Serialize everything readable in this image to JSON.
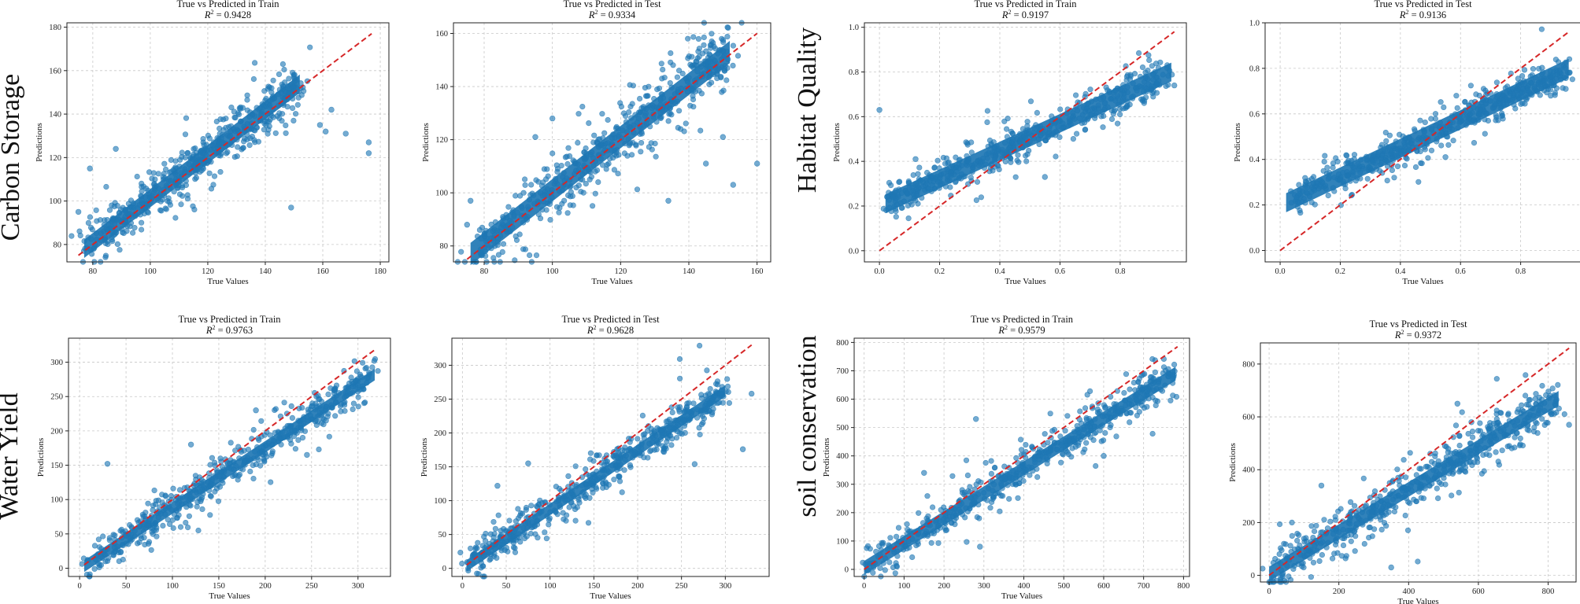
{
  "figure": {
    "row_labels": [
      "Carbon Storage",
      "Habitat Quality",
      "Water Yield",
      "soil conservation"
    ],
    "colors": {
      "points": "#1f77b4",
      "reference_line": "#d62728"
    }
  },
  "chart_data": [
    {
      "id": "cs-train",
      "type": "scatter",
      "title": "True vs Predicted in Train",
      "r2_text": "= 0.9428",
      "xlabel": "True Values",
      "ylabel": "Predictions",
      "xlim": [
        71,
        183
      ],
      "ylim": [
        72,
        182
      ],
      "xticks": [
        80,
        100,
        120,
        140,
        160,
        180
      ],
      "yticks": [
        80,
        100,
        120,
        140,
        160,
        180
      ],
      "ref_line": [
        75,
        177
      ],
      "band": [
        [
          77,
          78
        ],
        [
          152,
          154
        ]
      ],
      "band_width": 12,
      "scatter_sd": 3.5,
      "outliers": [
        [
          163,
          142
        ],
        [
          176,
          127
        ],
        [
          176,
          122
        ],
        [
          161,
          132
        ],
        [
          159,
          135
        ],
        [
          149,
          97
        ],
        [
          88,
          124
        ],
        [
          75,
          95
        ],
        [
          79,
          115
        ],
        [
          168,
          131
        ]
      ]
    },
    {
      "id": "cs-test",
      "type": "scatter",
      "title": "True vs Predicted in Test",
      "r2_text": "= 0.9334",
      "xlabel": "True Values",
      "ylabel": "Predictions",
      "xlim": [
        71,
        164
      ],
      "ylim": [
        74,
        164
      ],
      "xticks": [
        80,
        100,
        120,
        140,
        160
      ],
      "yticks": [
        80,
        100,
        120,
        140,
        160
      ],
      "ref_line": [
        75,
        160
      ],
      "band": [
        [
          76,
          77
        ],
        [
          152,
          153
        ]
      ],
      "band_width": 12,
      "scatter_sd": 3.5,
      "outliers": [
        [
          160,
          111
        ],
        [
          150,
          121
        ],
        [
          153,
          103
        ],
        [
          76,
          97
        ],
        [
          75,
          88
        ],
        [
          95,
          121
        ],
        [
          100,
          128
        ],
        [
          134,
          97
        ],
        [
          145,
          111
        ]
      ]
    },
    {
      "id": "hq-train",
      "type": "scatter",
      "title": "True vs Predicted in Train",
      "r2_text": "= 0.9197",
      "xlabel": "True Values",
      "ylabel": "Predictions",
      "xlim": [
        -0.05,
        1.02
      ],
      "ylim": [
        -0.05,
        1.02
      ],
      "xticks": [
        0.0,
        0.2,
        0.4,
        0.6,
        0.8
      ],
      "yticks": [
        0.0,
        0.2,
        0.4,
        0.6,
        0.8,
        1.0
      ],
      "ref_line": [
        0,
        0.98
      ],
      "band": [
        [
          0.02,
          0.21
        ],
        [
          0.97,
          0.8
        ]
      ],
      "band_width": 0.12,
      "scatter_sd": 0.025,
      "outliers": [
        [
          0.0,
          0.63
        ],
        [
          0.98,
          0.74
        ],
        [
          0.88,
          0.67
        ],
        [
          0.12,
          0.41
        ],
        [
          0.18,
          0.31
        ],
        [
          0.55,
          0.33
        ]
      ]
    },
    {
      "id": "hq-test",
      "type": "scatter",
      "title": "True vs Predicted in Test",
      "r2_text": "= 0.9136",
      "xlabel": "True Values",
      "ylabel": "Predictions",
      "xlim": [
        -0.05,
        1.0
      ],
      "ylim": [
        -0.05,
        1.0
      ],
      "xticks": [
        0.0,
        0.2,
        0.4,
        0.6,
        0.8
      ],
      "yticks": [
        0.0,
        0.2,
        0.4,
        0.6,
        0.8,
        1.0
      ],
      "ref_line": [
        0,
        0.96
      ],
      "band": [
        [
          0.02,
          0.21
        ],
        [
          0.96,
          0.8
        ]
      ],
      "band_width": 0.12,
      "scatter_sd": 0.025,
      "outliers": [
        [
          0.95,
          0.71
        ],
        [
          0.9,
          0.68
        ],
        [
          0.2,
          0.31
        ],
        [
          0.55,
          0.41
        ]
      ]
    },
    {
      "id": "wy-train",
      "type": "scatter",
      "title": "True vs Predicted in Train",
      "r2_text": "= 0.9763",
      "xlabel": "True Values",
      "ylabel": "Predictions",
      "xlim": [
        -12,
        335
      ],
      "ylim": [
        -12,
        335
      ],
      "xticks": [
        0,
        50,
        100,
        150,
        200,
        250,
        300
      ],
      "yticks": [
        0,
        50,
        100,
        150,
        200,
        250,
        300
      ],
      "ref_line": [
        5,
        318
      ],
      "band": [
        [
          5,
          3
        ],
        [
          318,
          282
        ]
      ],
      "band_width": 24,
      "scatter_sd": 8,
      "outliers": [
        [
          30,
          152
        ],
        [
          305,
          265
        ],
        [
          312,
          285
        ],
        [
          245,
          165
        ],
        [
          190,
          230
        ],
        [
          120,
          180
        ]
      ]
    },
    {
      "id": "wy-test",
      "type": "scatter",
      "title": "True vs Predicted in Test",
      "r2_text": "= 0.9628",
      "xlabel": "True Values",
      "ylabel": "Predictions",
      "xlim": [
        -12,
        350
      ],
      "ylim": [
        -12,
        340
      ],
      "xticks": [
        0,
        50,
        100,
        150,
        200,
        250,
        300
      ],
      "yticks": [
        0,
        50,
        100,
        150,
        200,
        250,
        300
      ],
      "ref_line": [
        5,
        330
      ],
      "band": [
        [
          5,
          4
        ],
        [
          300,
          262
        ]
      ],
      "band_width": 24,
      "scatter_sd": 9,
      "outliers": [
        [
          320,
          176
        ],
        [
          265,
          154
        ],
        [
          330,
          258
        ],
        [
          40,
          122
        ],
        [
          75,
          155
        ],
        [
          230,
          172
        ]
      ]
    },
    {
      "id": "sc-train",
      "type": "scatter",
      "title": "True vs Predicted in Train",
      "r2_text": "= 0.9579",
      "xlabel": "True Values",
      "ylabel": "Predictions",
      "xlim": [
        -25,
        815
      ],
      "ylim": [
        -25,
        815
      ],
      "xticks": [
        0,
        100,
        200,
        300,
        400,
        500,
        600,
        700,
        800
      ],
      "yticks": [
        0,
        100,
        200,
        300,
        400,
        500,
        600,
        700,
        800
      ],
      "ref_line": [
        0,
        785
      ],
      "band": [
        [
          0,
          5
        ],
        [
          780,
          690
        ]
      ],
      "band_width": 70,
      "scatter_sd": 22,
      "outliers": [
        [
          40,
          5
        ],
        [
          290,
          80
        ],
        [
          280,
          530
        ],
        [
          150,
          340
        ],
        [
          600,
          400
        ]
      ]
    },
    {
      "id": "sc-test",
      "type": "scatter",
      "title": "True vs Predicted in Test",
      "r2_text": "= 0.9372",
      "xlabel": "True Values",
      "ylabel": "Predictions",
      "xlim": [
        -25,
        880
      ],
      "ylim": [
        -25,
        880
      ],
      "xticks": [
        0,
        200,
        400,
        600,
        800
      ],
      "yticks": [
        0,
        200,
        400,
        600,
        800
      ],
      "ref_line": [
        0,
        860
      ],
      "band": [
        [
          0,
          5
        ],
        [
          830,
          670
        ]
      ],
      "band_width": 80,
      "scatter_sd": 30,
      "outliers": [
        [
          860,
          570
        ],
        [
          810,
          610
        ],
        [
          540,
          650
        ],
        [
          580,
          580
        ],
        [
          350,
          30
        ],
        [
          150,
          340
        ]
      ]
    }
  ]
}
